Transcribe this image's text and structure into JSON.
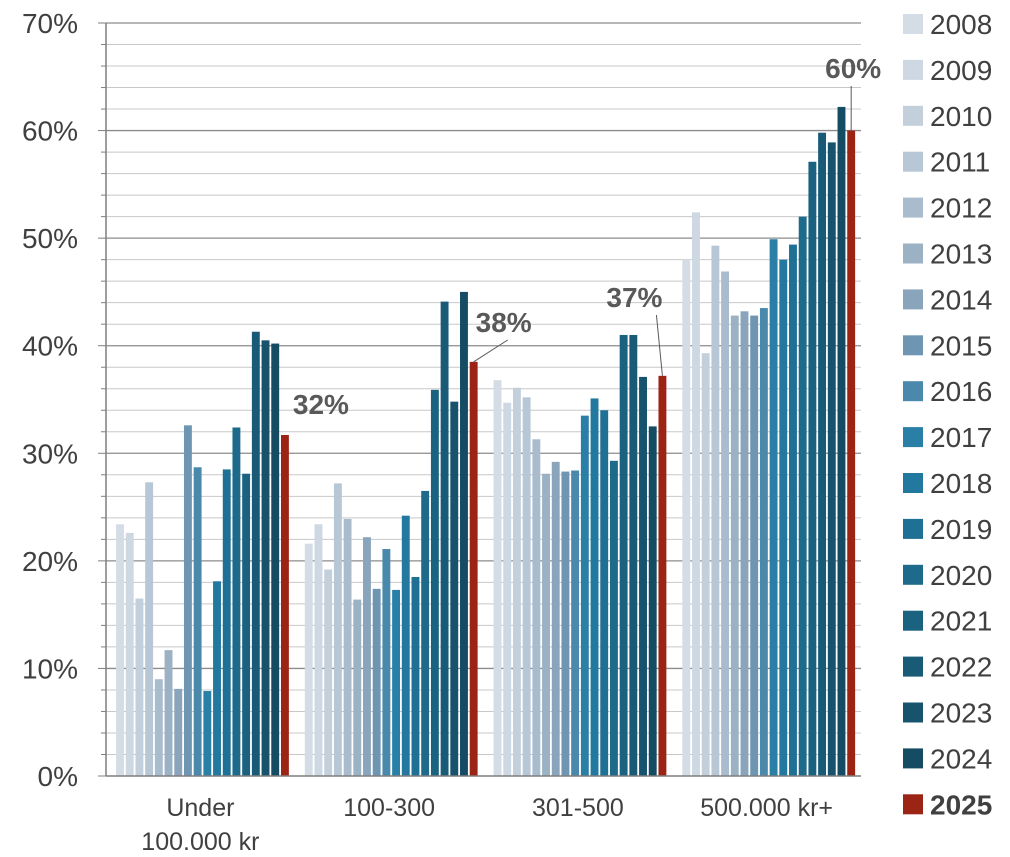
{
  "chart_data": {
    "type": "bar",
    "categories": [
      "Under\n100.000 kr",
      "100-300",
      "301-500",
      "500.000 kr+"
    ],
    "y_ticks": [
      "0%",
      "10%",
      "20%",
      "30%",
      "40%",
      "50%",
      "60%",
      "70%"
    ],
    "ylim": [
      0,
      70
    ],
    "grid": true,
    "legend_position": "right",
    "series": [
      {
        "name": "2008",
        "color": "#d4dde6",
        "values": [
          23.4,
          21.6,
          36.8,
          48.0
        ]
      },
      {
        "name": "2009",
        "color": "#cdd8e2",
        "values": [
          22.6,
          23.4,
          34.7,
          52.4
        ]
      },
      {
        "name": "2010",
        "color": "#c3d0dc",
        "values": [
          16.5,
          19.2,
          36.1,
          39.3
        ]
      },
      {
        "name": "2011",
        "color": "#b7c7d5",
        "values": [
          27.3,
          27.2,
          35.2,
          49.3
        ]
      },
      {
        "name": "2012",
        "color": "#a9bccd",
        "values": [
          9.0,
          23.9,
          31.3,
          46.9
        ]
      },
      {
        "name": "2013",
        "color": "#9bb1c4",
        "values": [
          11.7,
          16.4,
          28.1,
          42.8
        ]
      },
      {
        "name": "2014",
        "color": "#8aa5bb",
        "values": [
          8.1,
          22.2,
          29.2,
          43.2
        ]
      },
      {
        "name": "2015",
        "color": "#6e96b3",
        "values": [
          32.6,
          17.4,
          28.3,
          42.8
        ]
      },
      {
        "name": "2016",
        "color": "#4a89ab",
        "values": [
          28.7,
          21.1,
          28.4,
          43.5
        ]
      },
      {
        "name": "2017",
        "color": "#2a7fa6",
        "values": [
          7.9,
          17.3,
          33.5,
          49.9
        ]
      },
      {
        "name": "2018",
        "color": "#22789e",
        "values": [
          18.1,
          24.2,
          35.1,
          48.0
        ]
      },
      {
        "name": "2019",
        "color": "#1f7095",
        "values": [
          28.5,
          18.5,
          34.0,
          49.4
        ]
      },
      {
        "name": "2020",
        "color": "#1d6a8b",
        "values": [
          32.4,
          26.5,
          29.3,
          52.0
        ]
      },
      {
        "name": "2021",
        "color": "#1b6280",
        "values": [
          28.1,
          35.9,
          41.0,
          57.1
        ]
      },
      {
        "name": "2022",
        "color": "#195b76",
        "values": [
          41.3,
          44.1,
          41.0,
          59.8
        ]
      },
      {
        "name": "2023",
        "color": "#17536c",
        "values": [
          40.5,
          34.8,
          37.1,
          58.9
        ]
      },
      {
        "name": "2024",
        "color": "#154c64",
        "values": [
          40.2,
          45.0,
          32.5,
          62.2
        ]
      },
      {
        "name": "2025",
        "color": "#9b2414",
        "values": [
          31.7,
          38.5,
          37.2,
          60.0
        ]
      }
    ],
    "annotations": [
      "32%",
      "38%",
      "37%",
      "60%"
    ]
  }
}
